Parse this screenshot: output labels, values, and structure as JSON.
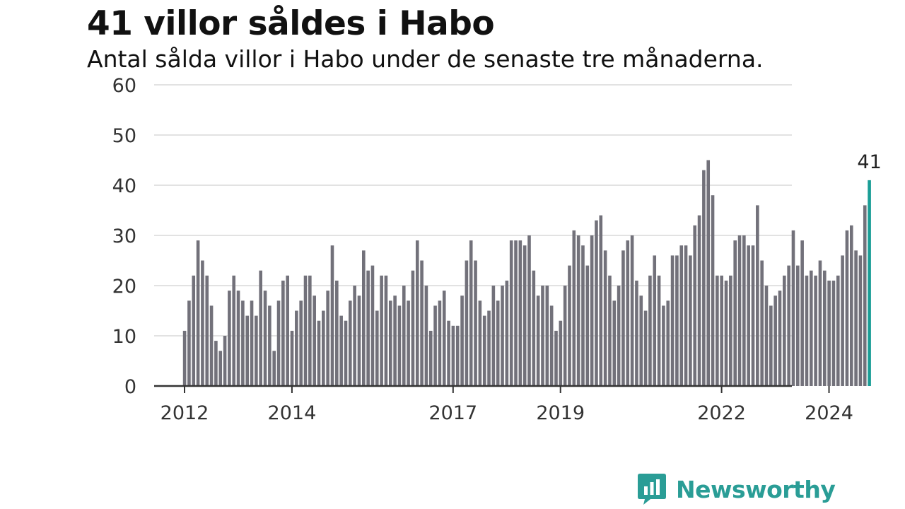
{
  "title": "41 villor såldes i Habo",
  "subtitle": "Antal sålda villor i Habo under de senaste tre månaderna.",
  "brand": {
    "name": "Newsworthy",
    "color": "#2a9d96",
    "icon": "bar-chart-speech-bubble-icon"
  },
  "colors": {
    "bar": "#72717a",
    "highlight": "#1a9e96",
    "grid": "#d9d9d9",
    "axis": "#333333",
    "text": "#333333"
  },
  "chart_data": {
    "type": "bar",
    "title": "41 villor såldes i Habo",
    "subtitle": "Antal sålda villor i Habo under de senaste tre månaderna.",
    "ylim": [
      0,
      60
    ],
    "yticks": [
      0,
      10,
      20,
      30,
      40,
      50,
      60
    ],
    "grid": true,
    "x_start": "2012-01",
    "x_end": "2025-01",
    "xtick_labels": [
      {
        "label": "2012",
        "date": "2012-01"
      },
      {
        "label": "2014",
        "date": "2014-01"
      },
      {
        "label": "2017",
        "date": "2017-01"
      },
      {
        "label": "2019",
        "date": "2019-01"
      },
      {
        "label": "2022",
        "date": "2022-01"
      },
      {
        "label": "2024",
        "date": "2024-01"
      }
    ],
    "highlight_label": "41",
    "series": [
      {
        "values": [
          11,
          17,
          22,
          29,
          25,
          22,
          16,
          9,
          7,
          10,
          19,
          22,
          19,
          17,
          14,
          17,
          14,
          23,
          19,
          16,
          7,
          17,
          21,
          22,
          11,
          15,
          17,
          22,
          22,
          18,
          13,
          15,
          19,
          28,
          21,
          14,
          13,
          17,
          20,
          18,
          27,
          23,
          24,
          15,
          22,
          22,
          17,
          18,
          16,
          20,
          17,
          23,
          29,
          25,
          20,
          11,
          16,
          17,
          19,
          13,
          12,
          12,
          18,
          25,
          29,
          25,
          17,
          14,
          15,
          20,
          17,
          20,
          21,
          29,
          29,
          29,
          28,
          30,
          23,
          18,
          20,
          20,
          16,
          11,
          13,
          20,
          24,
          31,
          30,
          28,
          24,
          30,
          33,
          34,
          27,
          22,
          17,
          20,
          27,
          29,
          30,
          21,
          18,
          15,
          22,
          26,
          22,
          16,
          17,
          26,
          26,
          28,
          28,
          26,
          32,
          34,
          43,
          45,
          38,
          22,
          22,
          21,
          22,
          29,
          30,
          30,
          28,
          28,
          36,
          25,
          20,
          16,
          18,
          19,
          22,
          24,
          31,
          24,
          29,
          22,
          23,
          22,
          25,
          23,
          21,
          21,
          22,
          26,
          31,
          32,
          27,
          26,
          36,
          41
        ]
      }
    ]
  }
}
